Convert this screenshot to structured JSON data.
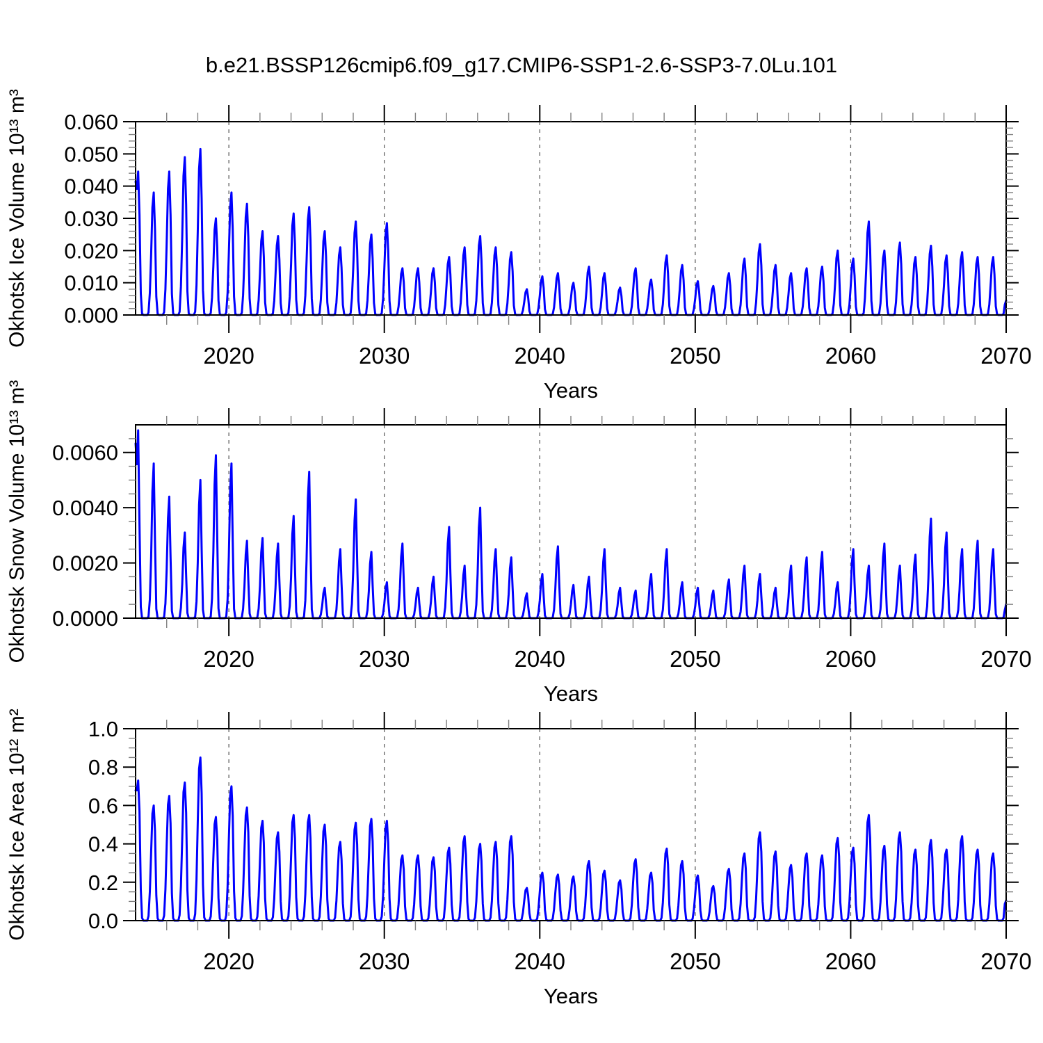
{
  "title": "b.e21.BSSP126cmip6.f09_g17.CMIP6-SSP1-2.6-SSP3-7.0Lu.101",
  "colors": {
    "line": "#0000ff",
    "axis": "#000000",
    "grid_dashed": "#606060",
    "minor_tick": "#808080",
    "background": "#ffffff"
  },
  "x_axis": {
    "label": "Years",
    "min": 2014,
    "max": 2070,
    "major_ticks": [
      2020,
      2030,
      2040,
      2050,
      2060,
      2070
    ],
    "major_labels": [
      "2020",
      "2030",
      "2040",
      "2050",
      "2060",
      "2070"
    ],
    "minor_tick_step_years": 2,
    "dashed_gridlines_at": [
      2020,
      2030,
      2040,
      2050,
      2060
    ],
    "years": [
      2014,
      2015,
      2016,
      2017,
      2018,
      2019,
      2020,
      2021,
      2022,
      2023,
      2024,
      2025,
      2026,
      2027,
      2028,
      2029,
      2030,
      2031,
      2032,
      2033,
      2034,
      2035,
      2036,
      2037,
      2038,
      2039,
      2040,
      2041,
      2042,
      2043,
      2044,
      2045,
      2046,
      2047,
      2048,
      2049,
      2050,
      2051,
      2052,
      2053,
      2054,
      2055,
      2056,
      2057,
      2058,
      2059,
      2060,
      2061,
      2062,
      2063,
      2064,
      2065,
      2066,
      2067,
      2068,
      2069
    ]
  },
  "chart_data": [
    {
      "type": "line",
      "id": "ice-volume",
      "ylabel": "Okhotsk Ice Volume 10¹³ m³",
      "ylim": [
        0,
        0.06
      ],
      "ytick_values": [
        0.0,
        0.01,
        0.02,
        0.03,
        0.04,
        0.05,
        0.06
      ],
      "ytick_labels": [
        "0.000",
        "0.010",
        "0.020",
        "0.030",
        "0.040",
        "0.050",
        "0.060"
      ],
      "y_minor_step": 0.002,
      "seasonal_profile": [
        0.5,
        0.88,
        1.0,
        0.7,
        0.15,
        0.01,
        0,
        0,
        0,
        0,
        0.02,
        0.18
      ],
      "annual_peaks": [
        0.0445,
        0.038,
        0.0445,
        0.049,
        0.0515,
        0.03,
        0.038,
        0.0345,
        0.026,
        0.0245,
        0.0315,
        0.0335,
        0.026,
        0.021,
        0.029,
        0.025,
        0.0285,
        0.0145,
        0.0145,
        0.0145,
        0.018,
        0.021,
        0.0245,
        0.021,
        0.0195,
        0.008,
        0.012,
        0.013,
        0.01,
        0.015,
        0.013,
        0.0085,
        0.0145,
        0.011,
        0.0185,
        0.0155,
        0.0105,
        0.009,
        0.013,
        0.0175,
        0.022,
        0.0155,
        0.013,
        0.0145,
        0.015,
        0.02,
        0.0175,
        0.029,
        0.02,
        0.0225,
        0.018,
        0.0215,
        0.0185,
        0.0195,
        0.018,
        0.018
      ]
    },
    {
      "type": "line",
      "id": "snow-volume",
      "ylabel": "Okhotsk Snow Volume 10¹³ m³",
      "ylim": [
        0,
        0.007
      ],
      "ytick_values": [
        0.0,
        0.002,
        0.004,
        0.006
      ],
      "ytick_labels": [
        "0.0000",
        "0.0020",
        "0.0040",
        "0.0060"
      ],
      "y_minor_step": 0.0005,
      "seasonal_profile": [
        0.4,
        0.82,
        1.0,
        0.5,
        0.06,
        0,
        0,
        0,
        0,
        0,
        0.01,
        0.12
      ],
      "annual_peaks": [
        0.0068,
        0.0056,
        0.0044,
        0.0031,
        0.005,
        0.0059,
        0.0056,
        0.0028,
        0.0029,
        0.0027,
        0.0037,
        0.0053,
        0.0011,
        0.0025,
        0.0043,
        0.0024,
        0.0013,
        0.0027,
        0.0011,
        0.0015,
        0.0033,
        0.0019,
        0.004,
        0.0025,
        0.0022,
        0.0009,
        0.0016,
        0.0026,
        0.0012,
        0.0015,
        0.0025,
        0.0011,
        0.001,
        0.0016,
        0.0025,
        0.0013,
        0.0011,
        0.001,
        0.0014,
        0.0019,
        0.0016,
        0.0011,
        0.0019,
        0.0022,
        0.0024,
        0.0013,
        0.0025,
        0.0019,
        0.0027,
        0.0019,
        0.0023,
        0.0036,
        0.0031,
        0.0025,
        0.0028,
        0.0025
      ]
    },
    {
      "type": "line",
      "id": "ice-area",
      "ylabel": "Okhotsk Ice Area 10¹² m²",
      "ylim": [
        0,
        1.0
      ],
      "ytick_values": [
        0.0,
        0.2,
        0.4,
        0.6,
        0.8,
        1.0
      ],
      "ytick_labels": [
        "0.0",
        "0.2",
        "0.4",
        "0.6",
        "0.8",
        "1.0"
      ],
      "y_minor_step": 0.05,
      "seasonal_profile": [
        0.6,
        0.93,
        1.0,
        0.78,
        0.22,
        0.02,
        0,
        0,
        0,
        0,
        0.04,
        0.25
      ],
      "annual_peaks": [
        0.73,
        0.6,
        0.65,
        0.72,
        0.85,
        0.54,
        0.7,
        0.59,
        0.52,
        0.46,
        0.55,
        0.55,
        0.5,
        0.41,
        0.51,
        0.53,
        0.52,
        0.34,
        0.34,
        0.33,
        0.38,
        0.44,
        0.4,
        0.41,
        0.44,
        0.17,
        0.25,
        0.24,
        0.23,
        0.31,
        0.26,
        0.21,
        0.32,
        0.25,
        0.375,
        0.31,
        0.235,
        0.18,
        0.27,
        0.35,
        0.46,
        0.36,
        0.29,
        0.35,
        0.34,
        0.43,
        0.38,
        0.55,
        0.39,
        0.46,
        0.37,
        0.42,
        0.37,
        0.44,
        0.37,
        0.35
      ]
    }
  ]
}
